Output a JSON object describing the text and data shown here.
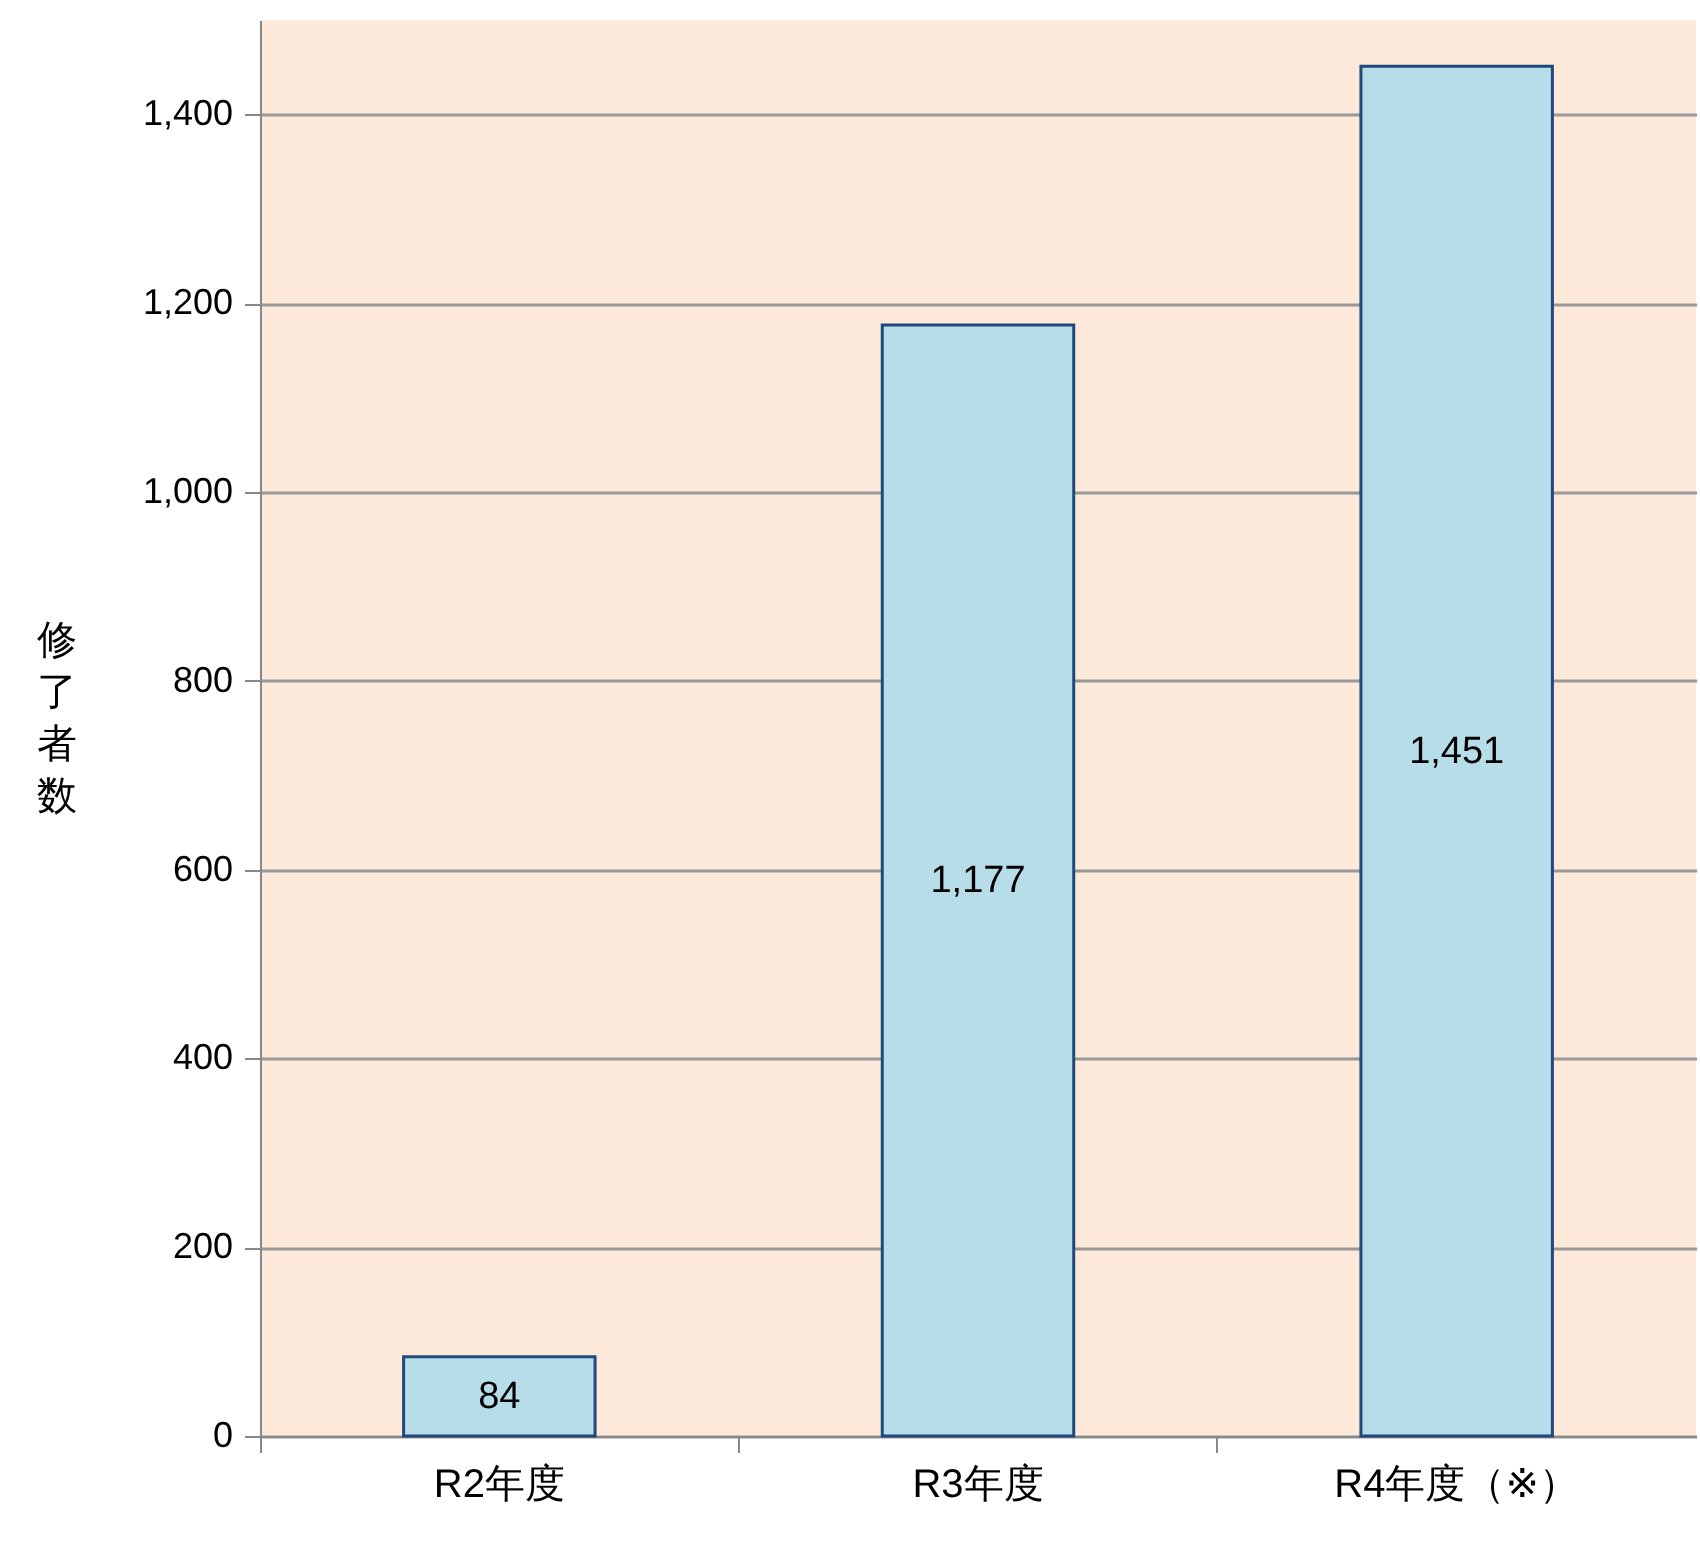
{
  "chart_data": {
    "type": "bar",
    "ylabel": "修了者数",
    "categories": [
      "R2年度",
      "R3年度",
      "R4年度（※）"
    ],
    "values": [
      84,
      1177,
      1451
    ],
    "color": "#b7dde8",
    "value_labels": [
      "84",
      "1,177",
      "1,451"
    ],
    "ylim": [
      0,
      1500
    ],
    "yticks": [
      0,
      {
        "value": 200,
        "label": "200"
      },
      {
        "value": 400,
        "label": "400"
      },
      {
        "value": 600,
        "label": "600"
      },
      {
        "value": 800,
        "label": "800"
      },
      {
        "value": 1000,
        "label": "1,000"
      },
      {
        "value": 1200,
        "label": "1,200"
      },
      {
        "value": 1400,
        "label": "1,400"
      }
    ],
    "grid": "y"
  }
}
